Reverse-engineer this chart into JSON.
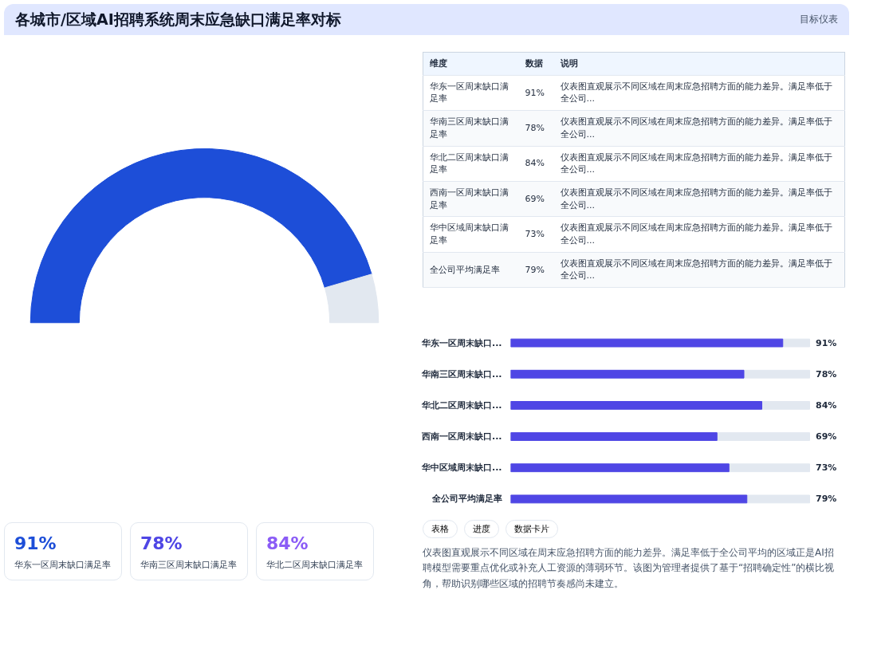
{
  "chart_data": [
    {
      "type": "other",
      "annotations": [
        "各城市/区域AI招聘系统周末应急缺口满足率对标",
        "目标仪表"
      ]
    },
    {
      "type": "donut",
      "categories": [
        null,
        null
      ],
      "values": [
        91,
        9
      ],
      "colors": [
        "#1d4ed8",
        "#e2e8f0"
      ]
    },
    {
      "type": "other",
      "annotations": [
        "维度",
        "数据",
        "说明",
        "华东一区周末缺口满足率",
        "91%",
        "仪表图直观展示不同区域在周末应急招聘方面的能力差异。满足率低于全公司...",
        "华南三区周末缺口满足率",
        "78%",
        "仪表图直观展示不同区域在周末应急招聘方面的能力差异。满足率低于全公司...",
        "华北二区周末缺口满足率",
        "84%",
        "仪表图直观展示不同区域在周末应急招聘方面的能力差异。满足率低于全公司...",
        "西南一区周末缺口满足率",
        "69%",
        "仪表图直观展示不同区域在周末应急招聘方面的能力差异。满足率低于全公司...",
        "华中区域周末缺口满足率",
        "73%",
        "仪表图直观展示不同区域在周末应急招聘方面的能力差异。满足率低于全公司...",
        "全公司平均满足率",
        "79%",
        "仪表图直观展示不同区域在周末应急招聘方面的能力差异。满足率低于全公司..."
      ]
    },
    {
      "type": "bar",
      "orientation": "horizontal",
      "categories": [
        "华东一区周末缺口...",
        "华南三区周末缺口...",
        "华北二区周末缺口...",
        "西南一区周末缺口...",
        "华中区域周末缺口...",
        "全公司平均满足率"
      ],
      "values": [
        91,
        78,
        84,
        69,
        73,
        79
      ],
      "value_labels": [
        "91%",
        "78%",
        "84%",
        "69%",
        "73%",
        "79%"
      ],
      "color": "#4f46e5",
      "xlim": [
        0,
        100
      ],
      "tick_labels": "y"
    },
    {
      "type": "other",
      "annotations": [
        "91%",
        "华东一区周末缺口满足率",
        "78%",
        "华南三区周末缺口满足率",
        "84%",
        "华北二区周末缺口满足率"
      ],
      "colors": [
        "#1d4ed8",
        "#4f46e5",
        "#8b5cf6"
      ]
    },
    {
      "type": "other",
      "annotations": [
        "表格",
        "进度",
        "数据卡片",
        "仪表图直观展示不同区域在周末应急招聘方面的能力差异。满足率低于全公司平均的区域正是AI招聘模型需要重点优化或补充人工资源的薄弱环节。该图为管理者提供了基于“招聘确定性”的横比视角，帮助识别哪些区域的招聘节奏感尚未建立。"
      ]
    }
  ]
}
